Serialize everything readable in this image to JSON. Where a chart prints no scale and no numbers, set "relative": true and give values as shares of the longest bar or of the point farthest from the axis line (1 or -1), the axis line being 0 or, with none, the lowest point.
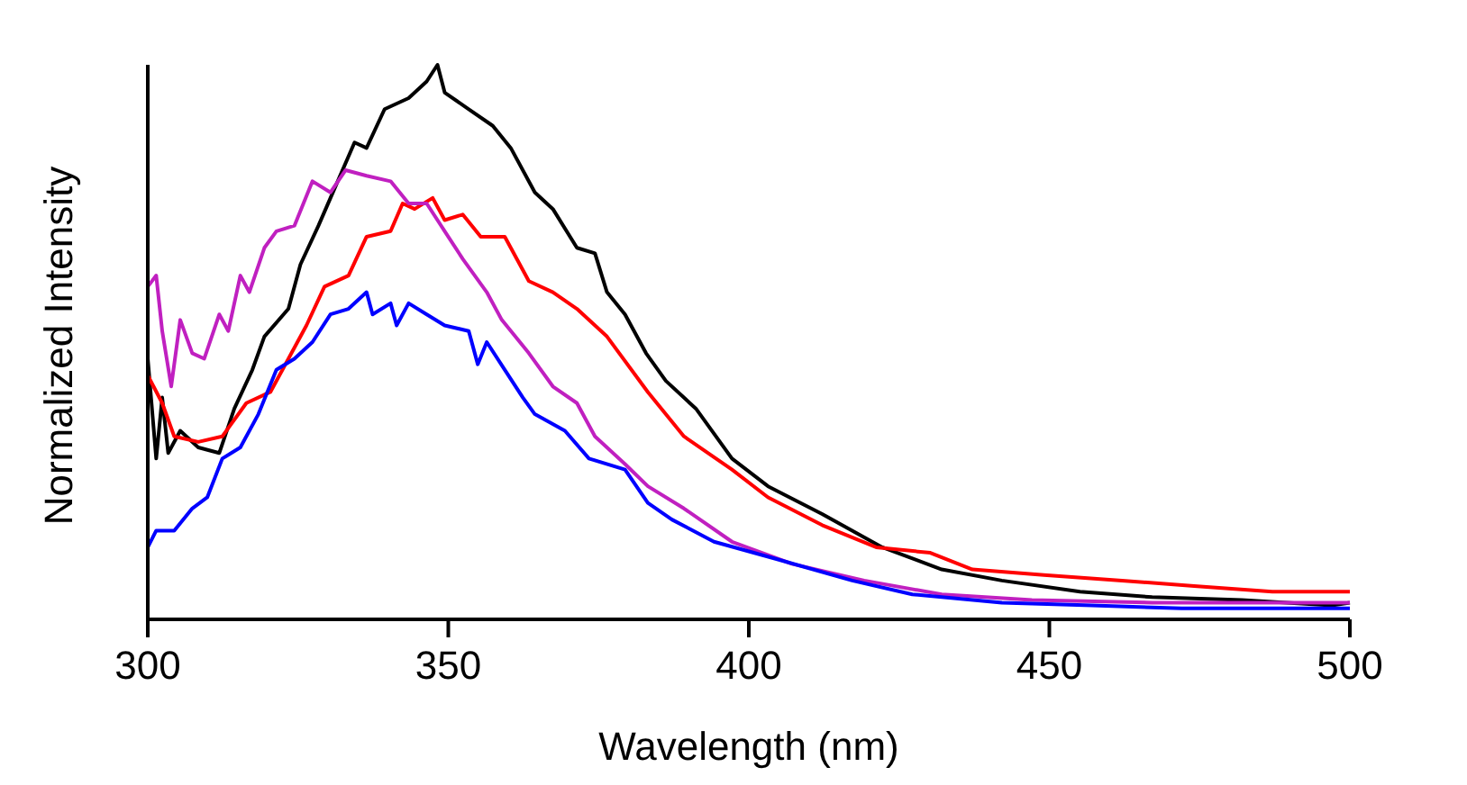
{
  "chart_data": {
    "type": "line",
    "xlabel": "Wavelength (nm)",
    "ylabel": "Normalized Intensity",
    "relative": true,
    "xlim": [
      300,
      500
    ],
    "xticks": [
      300,
      350,
      400,
      450,
      500
    ],
    "grid": false,
    "line_style": "solid",
    "series": [
      {
        "color": "#000000",
        "x": [
          300,
          301.4,
          302.4,
          303.4,
          305.4,
          308.4,
          311.9,
          314.4,
          317.4,
          319.4,
          323.4,
          325.4,
          328.4,
          330.4,
          334.4,
          336.4,
          339.4,
          343.4,
          346.4,
          348.2,
          349.4,
          353.4,
          357.4,
          360.4,
          364.4,
          367.4,
          371.4,
          374.4,
          376.4,
          379.4,
          382.9,
          386.2,
          391.2,
          397.2,
          403.2,
          412.2,
          422.2,
          432.1,
          442.1,
          455.1,
          467.1,
          482,
          497,
          500
        ],
        "values": [
          0.47,
          0.29,
          0.4,
          0.3,
          0.34,
          0.31,
          0.3,
          0.38,
          0.45,
          0.51,
          0.56,
          0.64,
          0.71,
          0.76,
          0.86,
          0.85,
          0.92,
          0.94,
          0.97,
          1,
          0.95,
          0.92,
          0.89,
          0.85,
          0.77,
          0.74,
          0.67,
          0.66,
          0.59,
          0.55,
          0.48,
          0.43,
          0.38,
          0.29,
          0.24,
          0.19,
          0.13,
          0.09,
          0.07,
          0.05,
          0.04,
          0.035,
          0.025,
          0.03
        ]
      },
      {
        "color": "#ff0000",
        "x": [
          300,
          302.4,
          304.4,
          308.4,
          312.4,
          316.4,
          320.4,
          323.4,
          326.4,
          329.4,
          333.4,
          336.4,
          340.4,
          342.4,
          344.4,
          347.4,
          349.4,
          352.4,
          355.4,
          359.4,
          363.4,
          367.4,
          371.4,
          376.4,
          383.2,
          389.2,
          397.2,
          403.2,
          412.2,
          421.2,
          430.2,
          437.2,
          449.1,
          462.1,
          474.1,
          487.1,
          500
        ],
        "values": [
          0.44,
          0.39,
          0.33,
          0.32,
          0.33,
          0.39,
          0.41,
          0.47,
          0.53,
          0.6,
          0.62,
          0.69,
          0.7,
          0.75,
          0.74,
          0.76,
          0.72,
          0.73,
          0.69,
          0.69,
          0.61,
          0.59,
          0.56,
          0.51,
          0.41,
          0.33,
          0.27,
          0.22,
          0.17,
          0.13,
          0.12,
          0.09,
          0.08,
          0.07,
          0.06,
          0.05,
          0.05
        ]
      },
      {
        "color": "#c020c0",
        "x": [
          300,
          301.4,
          302.4,
          303.9,
          305.4,
          307.4,
          309.4,
          311.9,
          313.4,
          315.4,
          316.9,
          319.4,
          321.4,
          324.4,
          327.4,
          330.4,
          332.9,
          336.4,
          340.4,
          343.4,
          346.4,
          349.4,
          352.4,
          356.4,
          358.9,
          363.4,
          367.4,
          371.4,
          374.4,
          379.4,
          383.2,
          389.2,
          397.2,
          407.2,
          419.2,
          432.1,
          447.1,
          467.1,
          487.1,
          500
        ],
        "values": [
          0.6,
          0.62,
          0.52,
          0.42,
          0.54,
          0.48,
          0.47,
          0.55,
          0.52,
          0.62,
          0.59,
          0.67,
          0.7,
          0.71,
          0.79,
          0.77,
          0.81,
          0.8,
          0.79,
          0.75,
          0.75,
          0.7,
          0.65,
          0.59,
          0.54,
          0.48,
          0.42,
          0.39,
          0.33,
          0.28,
          0.24,
          0.2,
          0.14,
          0.1,
          0.07,
          0.045,
          0.035,
          0.03,
          0.03,
          0.03
        ]
      },
      {
        "color": "#0000ff",
        "x": [
          300,
          301.4,
          304.4,
          307.4,
          309.9,
          312.4,
          315.4,
          318.4,
          321.4,
          324.4,
          327.4,
          330.4,
          333.4,
          336.4,
          337.4,
          340.4,
          341.4,
          343.4,
          346.4,
          349.4,
          353.4,
          354.9,
          356.4,
          359.4,
          362.4,
          364.4,
          369.4,
          373.4,
          379.4,
          383.2,
          387.2,
          394.2,
          404.2,
          417.2,
          427.2,
          442.1,
          457.1,
          472,
          500
        ],
        "values": [
          0.13,
          0.16,
          0.16,
          0.2,
          0.22,
          0.29,
          0.31,
          0.37,
          0.45,
          0.47,
          0.5,
          0.55,
          0.56,
          0.59,
          0.55,
          0.57,
          0.53,
          0.57,
          0.55,
          0.53,
          0.52,
          0.46,
          0.5,
          0.45,
          0.4,
          0.37,
          0.34,
          0.29,
          0.27,
          0.21,
          0.18,
          0.14,
          0.11,
          0.07,
          0.045,
          0.03,
          0.025,
          0.02,
          0.02
        ]
      }
    ]
  }
}
